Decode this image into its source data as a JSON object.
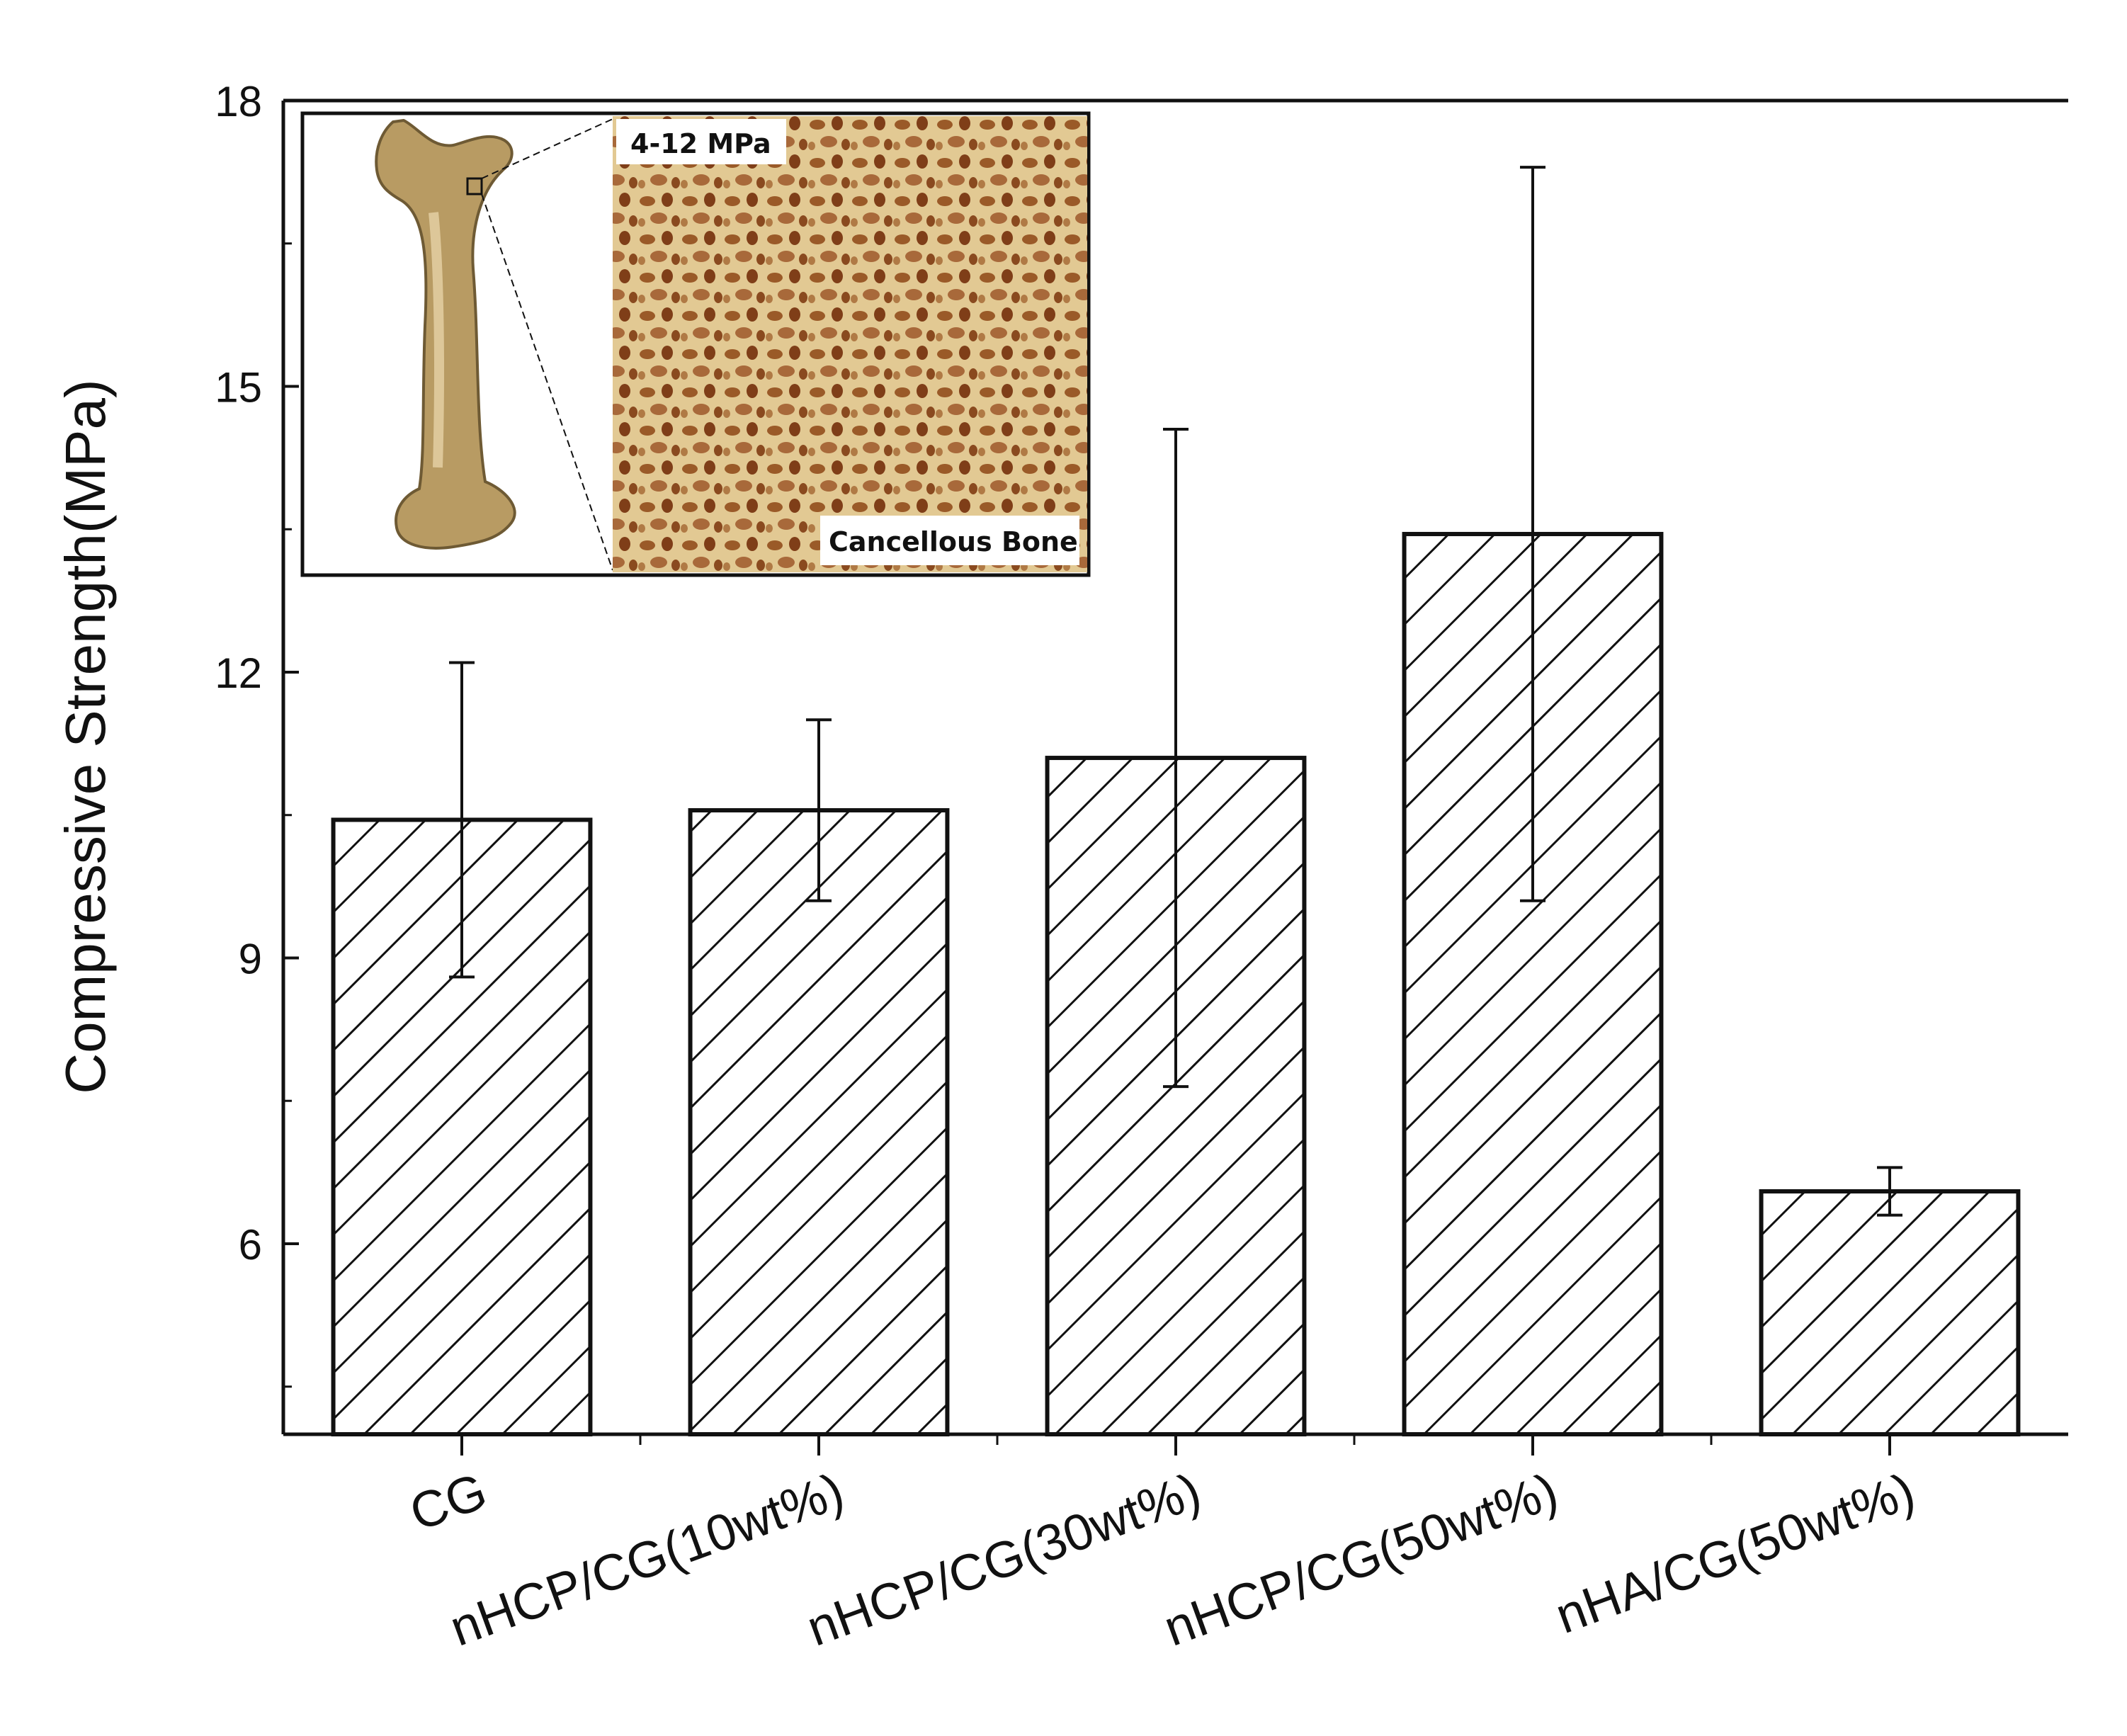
{
  "chart_data": {
    "type": "bar",
    "categories": [
      "CG",
      "nHCP/CG(10wt%)",
      "nHCP/CG(30wt%)",
      "nHCP/CG(50wt%)",
      "nHA/CG(50wt%)"
    ],
    "values": [
      10.45,
      10.55,
      11.1,
      13.45,
      6.55
    ],
    "errors": [
      1.65,
      0.95,
      3.45,
      3.85,
      0.25
    ],
    "ylabel": "Compressive Strength(MPa)",
    "xlabel": "",
    "ylim": [
      4,
      18
    ],
    "yticks": [
      6,
      9,
      12,
      15,
      18
    ],
    "bar_fill": "diagonal-hatch",
    "bar_color": "#111111",
    "grid": false,
    "legend": "none"
  },
  "inset": {
    "range_label": "4-12 MPa",
    "caption": "Cancellous Bone",
    "colors": {
      "bone": "#b89b63",
      "bone_light": "#e6d2a6",
      "pore": "#8a4a1f"
    }
  }
}
